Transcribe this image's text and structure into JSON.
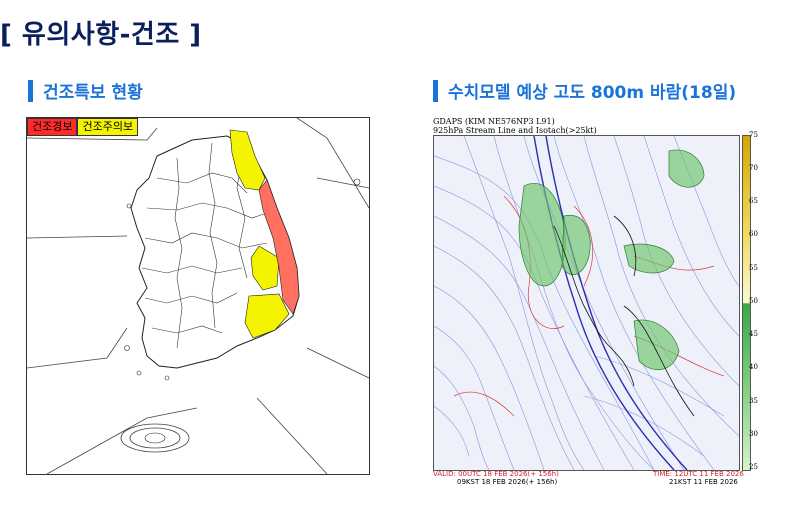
{
  "page": {
    "title": "[ 유의사항-건조 ]"
  },
  "left_section": {
    "header": "건조특보 현황",
    "legend": {
      "warning": "건조경보",
      "advisory": "건조주의보"
    },
    "colors": {
      "warning": "#ff2b2b",
      "advisory": "#f4f400"
    }
  },
  "right_section": {
    "header": "수치모델 예상 고도 800m 바람(18일)",
    "model_title": "GDAPS (KIM NE576NP3 L91)",
    "model_subtitle": "925hPa Stream Line and Isotach(>25kt)",
    "colorbar_ticks": [
      "75",
      "70",
      "65",
      "60",
      "55",
      "50",
      "45",
      "40",
      "35",
      "30",
      "25"
    ],
    "valid_utc": "VALID: 00UTC 18 FEB 2026(+ 156h)",
    "valid_kst": "09KST 18 FEB 2026(+ 156h)",
    "time_utc": "TIME: 12UTC 11 FEB 2026",
    "time_kst": "21KST 11 FEB 2026"
  }
}
